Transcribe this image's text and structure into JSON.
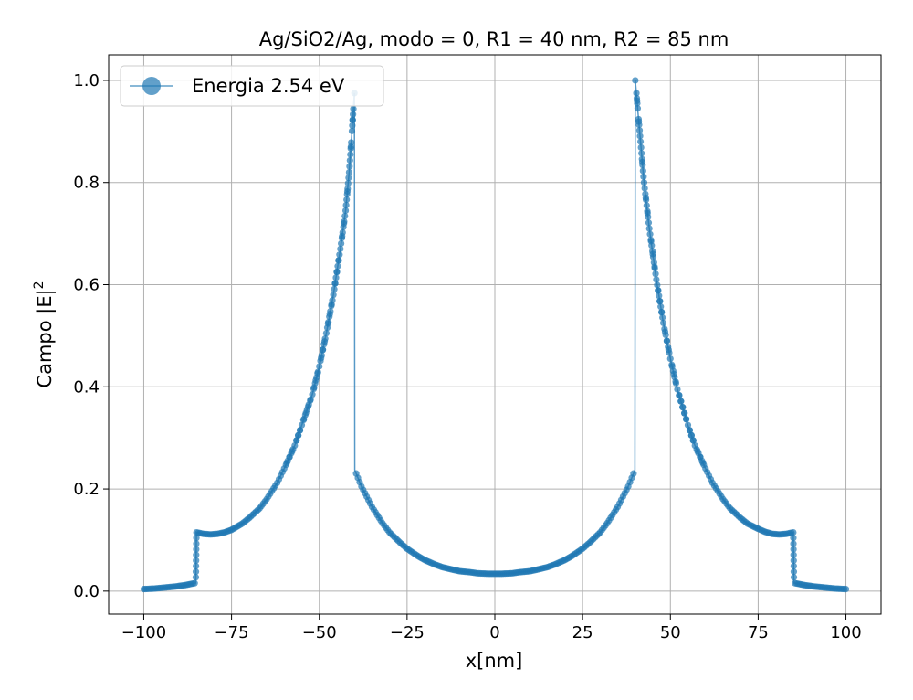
{
  "chart_data": {
    "type": "line",
    "title": "Ag/SiO2/Ag, modo = 0, R1 = 40 nm, R2 = 85 nm",
    "xlabel": "x[nm]",
    "ylabel": "Campo |E|",
    "ylabel_sup": "2",
    "xlim": [
      -110,
      110
    ],
    "ylim": [
      -0.045,
      1.05
    ],
    "xticks": [
      -100,
      -75,
      -50,
      -25,
      0,
      25,
      50,
      75,
      100
    ],
    "xtick_labels": [
      "−100",
      "−75",
      "−50",
      "−25",
      "0",
      "25",
      "50",
      "75",
      "100"
    ],
    "yticks": [
      0.0,
      0.2,
      0.4,
      0.6,
      0.8,
      1.0
    ],
    "ytick_labels": [
      "0.0",
      "0.2",
      "0.4",
      "0.6",
      "0.8",
      "1.0"
    ],
    "grid": true,
    "legend": {
      "position": "top-left",
      "label": "Energia 2.54 eV"
    },
    "color": "#1f77b4",
    "series": [
      {
        "name": "Energia 2.54 eV",
        "points": [
          [
            -100,
            0.004
          ],
          [
            -97,
            0.005
          ],
          [
            -94,
            0.007
          ],
          [
            -91,
            0.009
          ],
          [
            -88,
            0.012
          ],
          [
            -85.2,
            0.016
          ],
          [
            -85,
            0.115
          ],
          [
            -83,
            0.112
          ],
          [
            -81,
            0.111
          ],
          [
            -79,
            0.112
          ],
          [
            -77,
            0.115
          ],
          [
            -75,
            0.12
          ],
          [
            -72,
            0.132
          ],
          [
            -70,
            0.143
          ],
          [
            -67,
            0.162
          ],
          [
            -65,
            0.18
          ],
          [
            -62,
            0.212
          ],
          [
            -60,
            0.24
          ],
          [
            -57,
            0.285
          ],
          [
            -55,
            0.325
          ],
          [
            -52,
            0.385
          ],
          [
            -50,
            0.44
          ],
          [
            -48,
            0.505
          ],
          [
            -46,
            0.58
          ],
          [
            -44,
            0.67
          ],
          [
            -42.5,
            0.745
          ],
          [
            -41.5,
            0.82
          ],
          [
            -40.8,
            0.89
          ],
          [
            -40.2,
            0.955
          ],
          [
            -40,
            0.975
          ],
          [
            -39.9,
            0.237
          ],
          [
            -38,
            0.205
          ],
          [
            -35,
            0.165
          ],
          [
            -32,
            0.133
          ],
          [
            -30,
            0.115
          ],
          [
            -27,
            0.095
          ],
          [
            -25,
            0.083
          ],
          [
            -22,
            0.069
          ],
          [
            -20,
            0.061
          ],
          [
            -17,
            0.052
          ],
          [
            -15,
            0.047
          ],
          [
            -12,
            0.042
          ],
          [
            -10,
            0.039
          ],
          [
            -7,
            0.037
          ],
          [
            -5,
            0.035
          ],
          [
            -2,
            0.034
          ],
          [
            0,
            0.034
          ],
          [
            2,
            0.034
          ],
          [
            5,
            0.035
          ],
          [
            7,
            0.037
          ],
          [
            10,
            0.039
          ],
          [
            12,
            0.042
          ],
          [
            15,
            0.047
          ],
          [
            17,
            0.052
          ],
          [
            20,
            0.061
          ],
          [
            22,
            0.069
          ],
          [
            25,
            0.083
          ],
          [
            27,
            0.095
          ],
          [
            30,
            0.115
          ],
          [
            32,
            0.133
          ],
          [
            35,
            0.165
          ],
          [
            38,
            0.205
          ],
          [
            39.9,
            0.237
          ],
          [
            40,
            1.0
          ],
          [
            40.2,
            0.985
          ],
          [
            40.8,
            0.935
          ],
          [
            41.5,
            0.88
          ],
          [
            42.5,
            0.8
          ],
          [
            44,
            0.71
          ],
          [
            46,
            0.61
          ],
          [
            48,
            0.525
          ],
          [
            50,
            0.455
          ],
          [
            52,
            0.395
          ],
          [
            55,
            0.325
          ],
          [
            57,
            0.285
          ],
          [
            60,
            0.24
          ],
          [
            62,
            0.212
          ],
          [
            65,
            0.18
          ],
          [
            67,
            0.162
          ],
          [
            70,
            0.143
          ],
          [
            72,
            0.132
          ],
          [
            75,
            0.122
          ],
          [
            77,
            0.116
          ],
          [
            79,
            0.112
          ],
          [
            81,
            0.111
          ],
          [
            83,
            0.112
          ],
          [
            85,
            0.115
          ],
          [
            85.2,
            0.016
          ],
          [
            88,
            0.012
          ],
          [
            91,
            0.009
          ],
          [
            94,
            0.007
          ],
          [
            97,
            0.005
          ],
          [
            100,
            0.004
          ]
        ]
      }
    ]
  }
}
